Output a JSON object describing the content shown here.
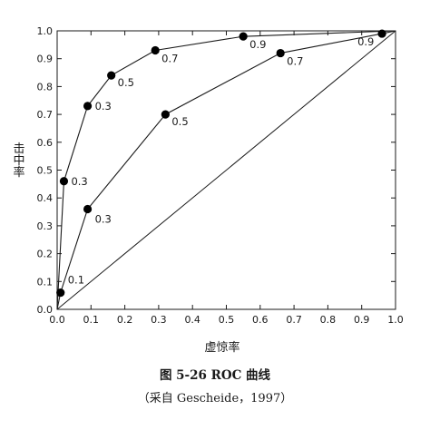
{
  "chart_data": {
    "type": "line",
    "xlabel": "虚惊率",
    "ylabel": "击中率",
    "xlim": [
      0,
      1.0
    ],
    "ylim": [
      0,
      1.0
    ],
    "x_ticks": [
      "0.0",
      "0.1",
      "0.2",
      "0.3",
      "0.4",
      "0.5",
      "0.6",
      "0.7",
      "0.8",
      "0.9",
      "1.0"
    ],
    "y_ticks": [
      "0.0",
      "0.1",
      "0.2",
      "0.3",
      "0.4",
      "0.5",
      "0.6",
      "0.7",
      "0.8",
      "0.9",
      "1.0"
    ],
    "grid": false,
    "legend": "none",
    "colors": {
      "line": "#1a1a1a",
      "marker": "#000000",
      "diagonal": "#1a1a1a"
    },
    "diagonal": {
      "from": [
        0,
        0
      ],
      "to": [
        1,
        1
      ]
    },
    "series": [
      {
        "points": [
          {
            "x": 0.02,
            "y": 0.46,
            "label": "0.3"
          },
          {
            "x": 0.09,
            "y": 0.73,
            "label": "0.3"
          },
          {
            "x": 0.16,
            "y": 0.84,
            "label": "0.5"
          },
          {
            "x": 0.29,
            "y": 0.93,
            "label": "0.7"
          },
          {
            "x": 0.55,
            "y": 0.98,
            "label": "0.9"
          }
        ]
      },
      {
        "points": [
          {
            "x": 0.01,
            "y": 0.06,
            "label": "0.1"
          },
          {
            "x": 0.09,
            "y": 0.36,
            "label": "0.3"
          },
          {
            "x": 0.32,
            "y": 0.7,
            "label": "0.5"
          },
          {
            "x": 0.66,
            "y": 0.92,
            "label": "0.7"
          },
          {
            "x": 0.96,
            "y": 0.99,
            "label": "0.9"
          }
        ]
      }
    ]
  },
  "caption": {
    "title": "图 5-26 ROC 曲线",
    "source": "（采自 Gescheide，1997）"
  }
}
